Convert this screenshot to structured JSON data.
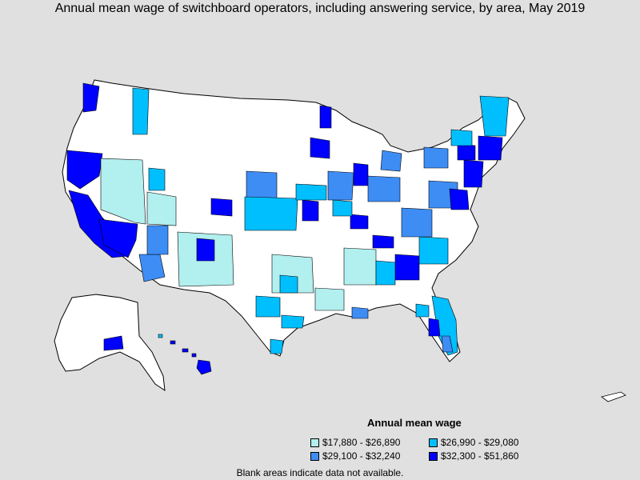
{
  "title": "Annual mean wage of switchboard operators, including answering service, by area, May 2019",
  "legend": {
    "title": "Annual mean wage",
    "items": [
      {
        "label": "$17,880 - $26,890",
        "color": "#b2efef"
      },
      {
        "label": "$26,990 - $29,080",
        "color": "#00bfff"
      },
      {
        "label": "$29,100 - $32,240",
        "color": "#3d8df5"
      },
      {
        "label": "$32,300 - $51,860",
        "color": "#0000ff"
      }
    ]
  },
  "footnote": "Blank areas indicate data not available.",
  "colors": {
    "background": "#e0e0e0",
    "blank_area": "#ffffff",
    "border": "#000000"
  }
}
